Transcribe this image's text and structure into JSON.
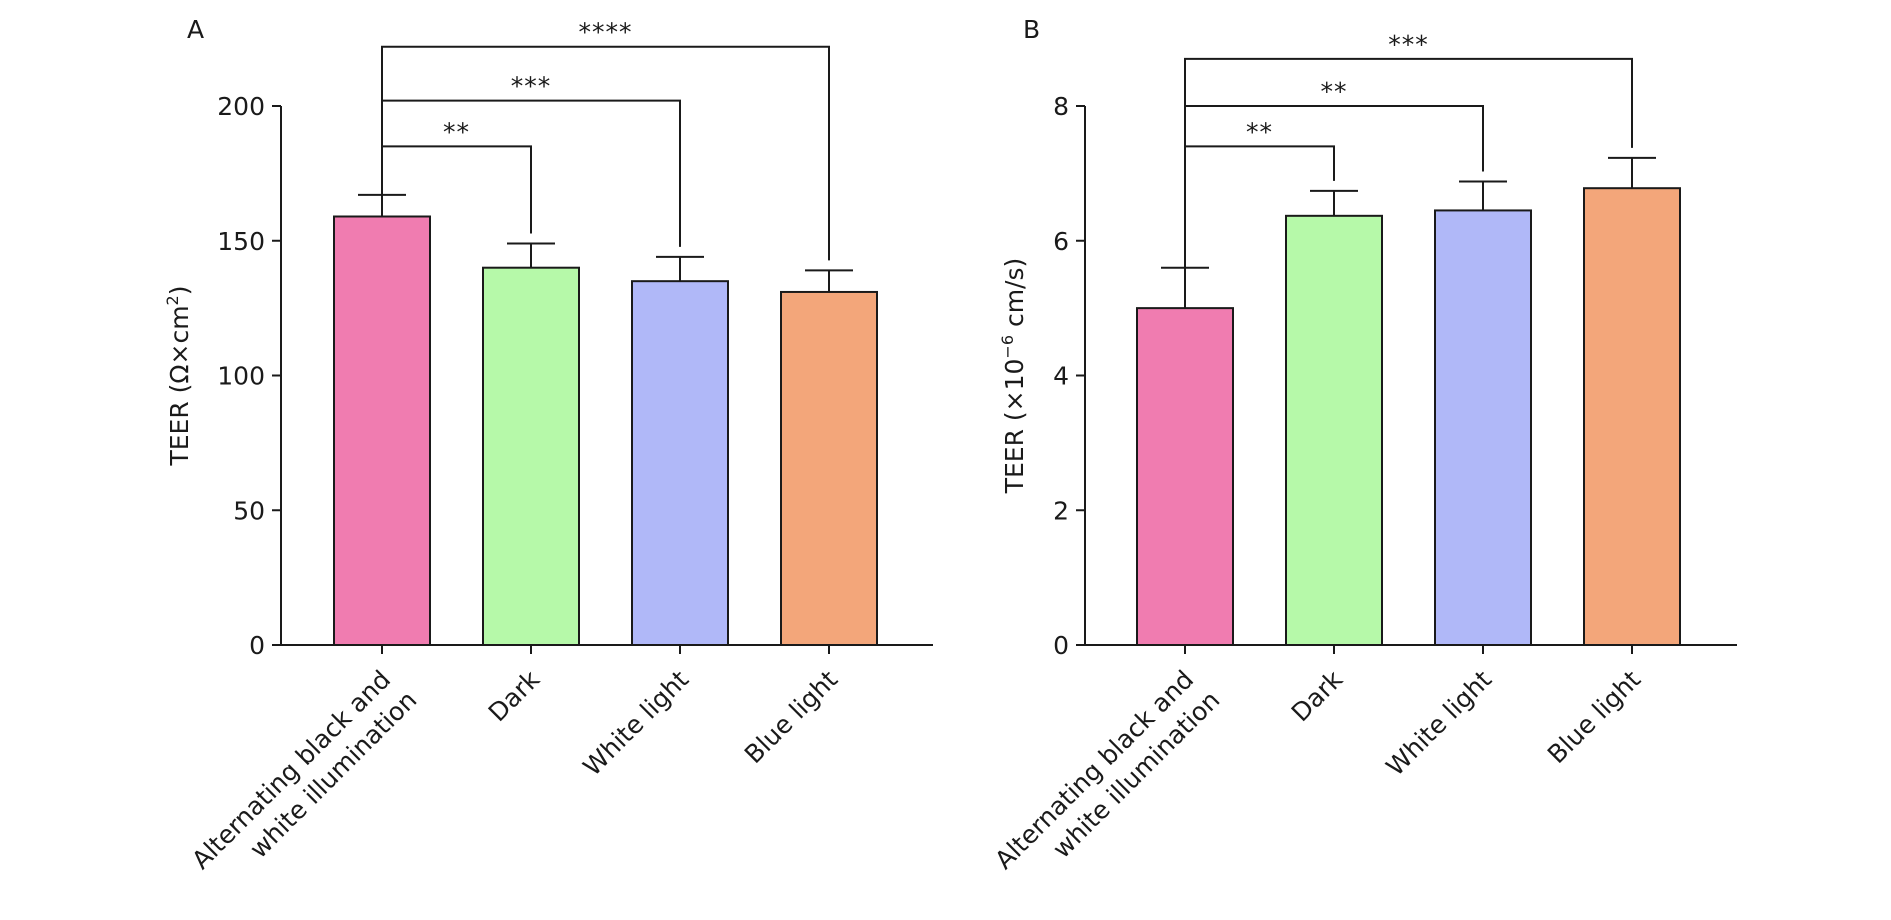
{
  "chart_data": [
    {
      "type": "bar",
      "panel_label": "A",
      "ylabel": "TEER (Ω×cm²)",
      "ylabel_parts": {
        "main": "TEER (Ω×cm",
        "sup": "2",
        "tail": ")"
      },
      "ylim": [
        0,
        200
      ],
      "yticks": [
        "0",
        "50",
        "100",
        "150",
        "200"
      ],
      "ytick_values": [
        0,
        50,
        100,
        150,
        200
      ],
      "categories": [
        "Alternating black and white illumination",
        "Dark",
        "White light",
        "Blue light"
      ],
      "category_lines": [
        [
          "Alternating black and",
          "white illumination"
        ],
        [
          "Dark"
        ],
        [
          "White light"
        ],
        [
          "Blue light"
        ]
      ],
      "values": [
        159,
        140,
        135,
        131
      ],
      "errors": [
        8,
        9,
        9,
        8
      ],
      "colors": [
        "#f07cb0",
        "#b6f9a9",
        "#b0b8f8",
        "#f3a67a"
      ],
      "significance": [
        {
          "from": 0,
          "to": 1,
          "label": "**",
          "y": 185
        },
        {
          "from": 0,
          "to": 2,
          "label": "***",
          "y": 202
        },
        {
          "from": 0,
          "to": 3,
          "label": "****",
          "y": 222
        }
      ]
    },
    {
      "type": "bar",
      "panel_label": "B",
      "ylabel": "TEER (×10⁻⁶ cm/s)",
      "ylabel_parts": {
        "main": "TEER (×10",
        "sup": "−6",
        "tail": " cm/s)"
      },
      "ylim": [
        0,
        8
      ],
      "yticks": [
        "0",
        "2",
        "4",
        "6",
        "8"
      ],
      "ytick_values": [
        0,
        2,
        4,
        6,
        8
      ],
      "categories": [
        "Alternating black and white illumination",
        "Dark",
        "White light",
        "Blue light"
      ],
      "category_lines": [
        [
          "Alternating black and",
          "white illumination"
        ],
        [
          "Dark"
        ],
        [
          "White light"
        ],
        [
          "Blue light"
        ]
      ],
      "values": [
        5.0,
        6.37,
        6.45,
        6.78
      ],
      "errors": [
        0.6,
        0.37,
        0.43,
        0.45
      ],
      "colors": [
        "#f07cb0",
        "#b6f9a9",
        "#b0b8f8",
        "#f3a67a"
      ],
      "significance": [
        {
          "from": 0,
          "to": 1,
          "label": "**",
          "y": 7.4
        },
        {
          "from": 0,
          "to": 2,
          "label": "**",
          "y": 8.0
        },
        {
          "from": 0,
          "to": 3,
          "label": "***",
          "y": 8.7
        }
      ]
    }
  ]
}
